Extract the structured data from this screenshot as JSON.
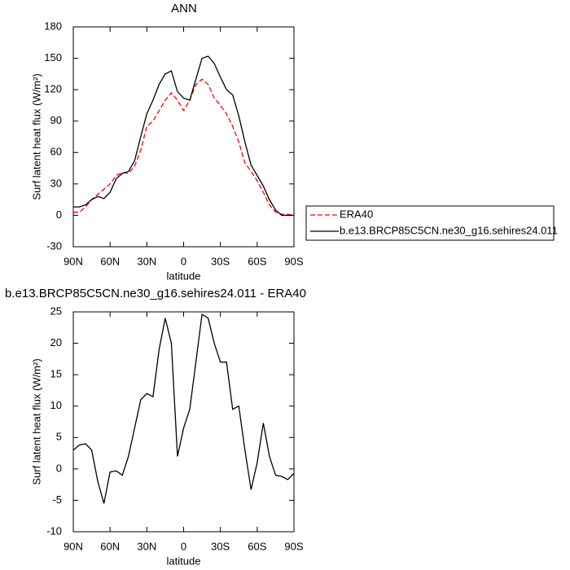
{
  "chart_data": [
    {
      "type": "line",
      "title": "ANN",
      "x_label": "latitude",
      "y_label": "Surf latent heat flux (W/m²)",
      "x": [
        90,
        85,
        80,
        75,
        70,
        65,
        60,
        55,
        50,
        45,
        40,
        35,
        30,
        25,
        20,
        15,
        10,
        5,
        0,
        -5,
        -10,
        -15,
        -20,
        -25,
        -30,
        -35,
        -40,
        -45,
        -50,
        -55,
        -60,
        -65,
        -70,
        -75,
        -80,
        -85,
        -90
      ],
      "series": [
        {
          "name": "ERA40",
          "color": "#ff0000",
          "dash": "dashed",
          "values": [
            3,
            3,
            8,
            15,
            20,
            25,
            30,
            38,
            41,
            40,
            47,
            62,
            85,
            90,
            100,
            110,
            117,
            110,
            100,
            110,
            125,
            130,
            125,
            112,
            105,
            97,
            85,
            70,
            50,
            42,
            33,
            22,
            10,
            3,
            1,
            1,
            0
          ]
        },
        {
          "name": "b.e13.BRCP85C5CN.ne30_g16.sehires24.011",
          "color": "#000000",
          "dash": "solid",
          "values": [
            8,
            8,
            10,
            15,
            18,
            16,
            22,
            35,
            40,
            42,
            52,
            75,
            97,
            110,
            125,
            135,
            138,
            118,
            112,
            110,
            130,
            150,
            152,
            145,
            132,
            120,
            115,
            95,
            70,
            48,
            38,
            28,
            15,
            5,
            0,
            0,
            0
          ]
        }
      ],
      "xlim": [
        90,
        -90
      ],
      "xticks": [
        {
          "value": 90,
          "label": "90N"
        },
        {
          "value": 60,
          "label": "60N"
        },
        {
          "value": 30,
          "label": "30N"
        },
        0,
        {
          "value": -30,
          "label": "30S"
        },
        {
          "value": -60,
          "label": "60S"
        },
        {
          "value": -90,
          "label": "90S"
        }
      ],
      "ylim": [
        -30,
        180
      ],
      "yticks": [
        -30,
        0,
        30,
        60,
        90,
        120,
        150,
        180
      ],
      "legend": "right"
    },
    {
      "type": "line",
      "title": "b.e13.BRCP85C5CN.ne30_g16.sehires24.011 - ERA40",
      "x_label": "latitude",
      "y_label": "Surf latent heat flux (W/m²)",
      "x": [
        90,
        85,
        80,
        75,
        70,
        65,
        60,
        55,
        50,
        45,
        40,
        35,
        30,
        25,
        20,
        15,
        10,
        5,
        0,
        -5,
        -10,
        -15,
        -20,
        -25,
        -30,
        -35,
        -40,
        -45,
        -50,
        -55,
        -60,
        -65,
        -70,
        -75,
        -80,
        -85,
        -90
      ],
      "values": [
        3,
        3.8,
        4,
        3,
        -2,
        -5.5,
        -0.5,
        -0.3,
        -1,
        2,
        6.5,
        11,
        12,
        11.5,
        19,
        24,
        20,
        2,
        6.5,
        9.5,
        17,
        24.6,
        24,
        20,
        17,
        17,
        9.5,
        10,
        3,
        -3.3,
        1,
        7.3,
        2,
        -1,
        -1.2,
        -1.7,
        -0.7
      ],
      "color": "#000000",
      "xlim": [
        90,
        -90
      ],
      "xticks": [
        {
          "value": 90,
          "label": "90N"
        },
        {
          "value": 60,
          "label": "60N"
        },
        {
          "value": 30,
          "label": "30N"
        },
        0,
        {
          "value": -30,
          "label": "30S"
        },
        {
          "value": -60,
          "label": "60S"
        },
        {
          "value": -90,
          "label": "90S"
        }
      ],
      "ylim": [
        -10,
        25
      ],
      "yticks": [
        -10,
        -5,
        0,
        5,
        10,
        15,
        20,
        25
      ]
    }
  ]
}
